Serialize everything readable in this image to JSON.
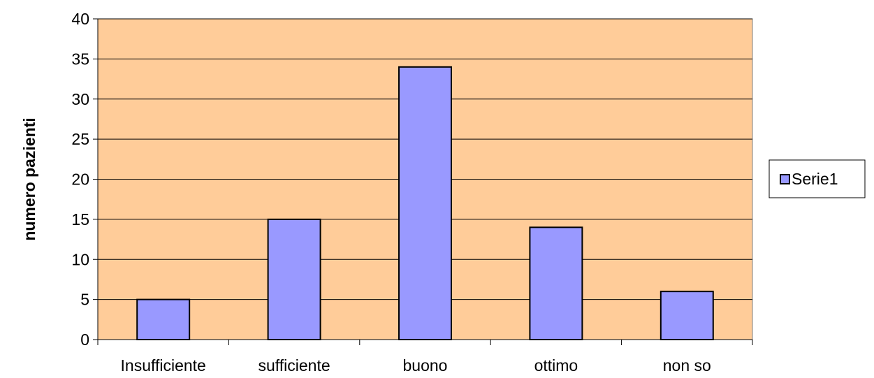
{
  "chart_data": {
    "type": "bar",
    "categories": [
      "Insufficiente",
      "sufficiente",
      "buono",
      "ottimo",
      "non so"
    ],
    "series": [
      {
        "name": "Serie1",
        "values": [
          5,
          15,
          34,
          14,
          6
        ]
      }
    ],
    "title": "",
    "xlabel": "",
    "ylabel": "numero pazienti",
    "ylim": [
      0,
      40
    ],
    "yticks": [
      0,
      5,
      10,
      15,
      20,
      25,
      30,
      35,
      40
    ],
    "grid": true,
    "legend_position": "right",
    "colors": {
      "plot_background": "#ffcc99",
      "bar_fill": "#9999ff",
      "bar_stroke": "#000000",
      "gridline": "#000000"
    }
  }
}
